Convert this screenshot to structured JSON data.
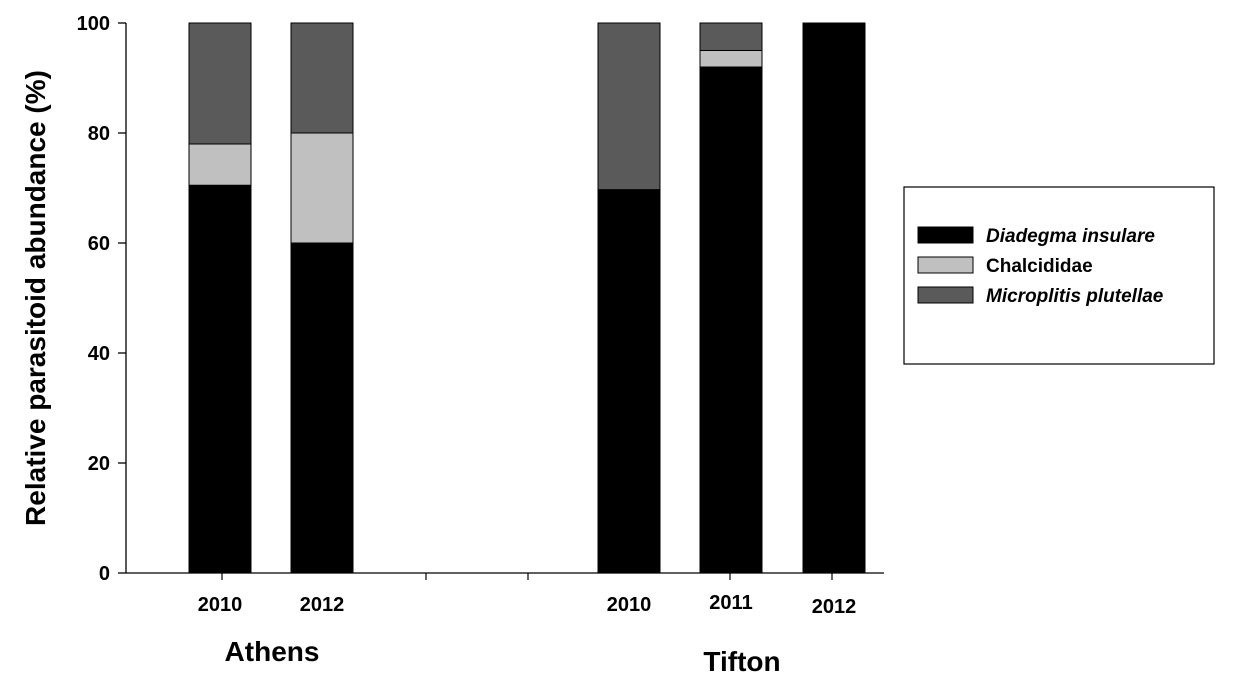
{
  "chart_data": {
    "type": "bar",
    "stacked": true,
    "ylabel": "Relative parasitoid abundance (%)",
    "ylim": [
      0,
      100
    ],
    "yticks": [
      0,
      20,
      40,
      60,
      80,
      100
    ],
    "grid": false,
    "legend_placement": "right",
    "groups": [
      {
        "label": "Athens",
        "categories": [
          "2010",
          "2012"
        ]
      },
      {
        "label": "Tifton",
        "categories": [
          "2010",
          "2011",
          "2012"
        ]
      }
    ],
    "series": [
      {
        "name": "Diadegma insulare",
        "italic": true,
        "color": "#000000",
        "values": [
          70.5,
          60,
          69.7,
          92,
          100
        ]
      },
      {
        "name": "Chalcididae",
        "italic": false,
        "color": "#c0c0c0",
        "values": [
          7.5,
          20,
          0,
          3,
          0
        ]
      },
      {
        "name": "Microplitis plutellae",
        "italic": true,
        "color": "#5a5a5a",
        "values": [
          22,
          20,
          30.3,
          5,
          0
        ]
      }
    ]
  }
}
